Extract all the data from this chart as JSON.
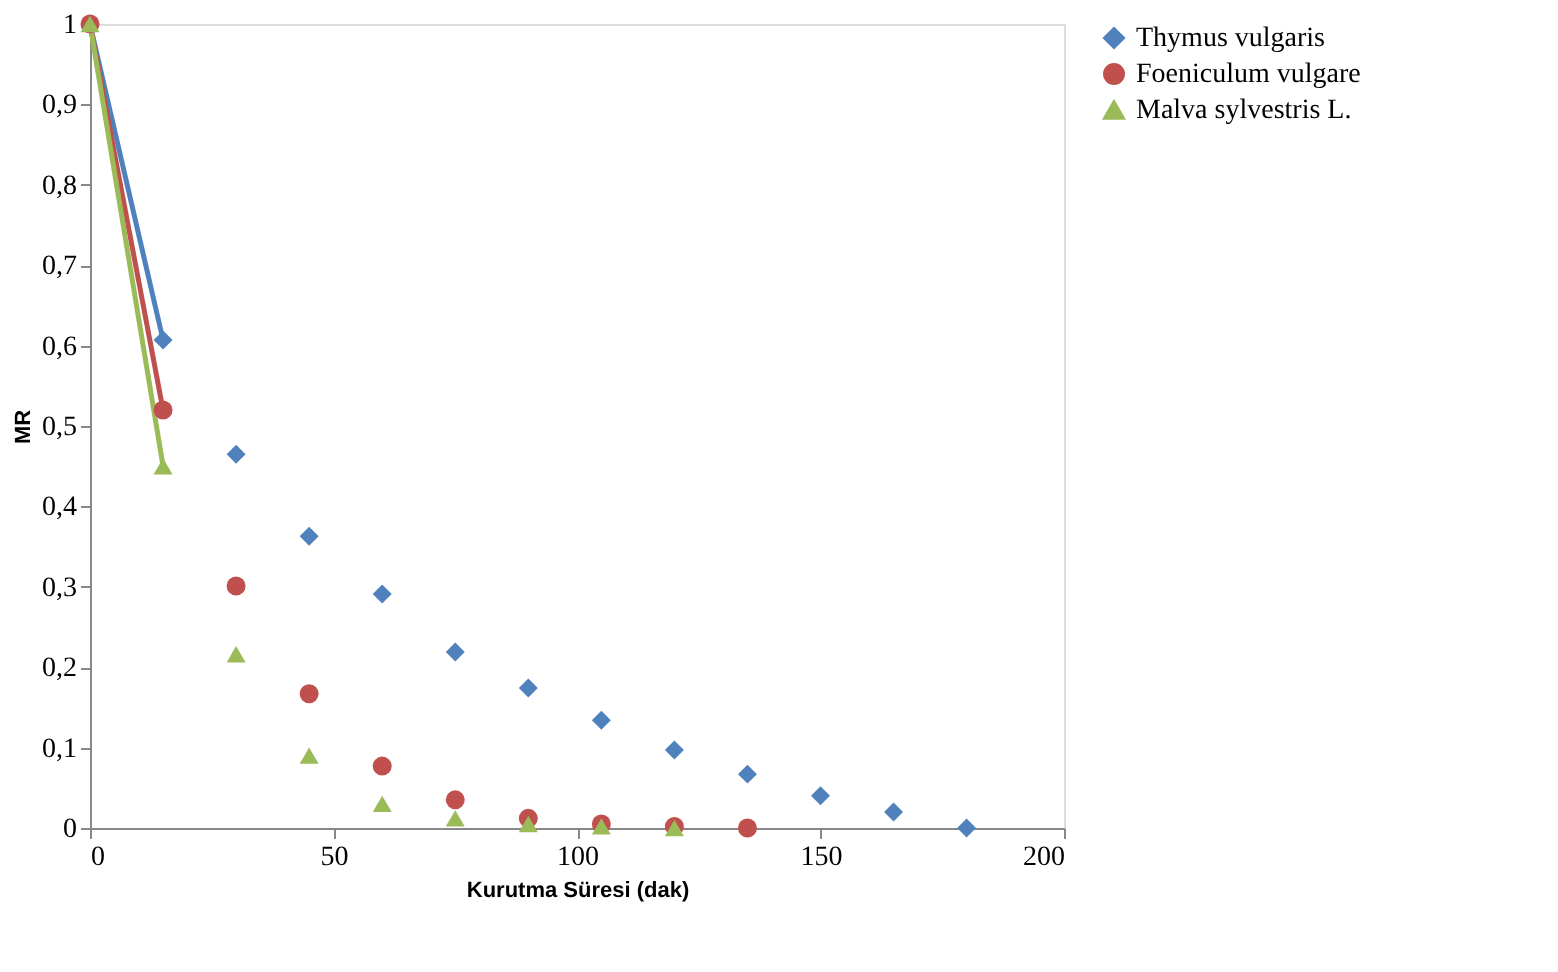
{
  "chart_data": {
    "type": "line",
    "xlabel": "Kurutma Süresi (dak)",
    "ylabel": "MR",
    "xlim": [
      0,
      200
    ],
    "xticks": [
      0,
      50,
      100,
      150,
      200
    ],
    "ylim": [
      0,
      1
    ],
    "yticks": [
      0,
      {
        "value": 0.1,
        "label": "0,1"
      },
      {
        "value": 0.2,
        "label": "0,2"
      },
      {
        "value": 0.3,
        "label": "0,3"
      },
      {
        "value": 0.4,
        "label": "0,4"
      },
      {
        "value": 0.5,
        "label": "0,5"
      },
      {
        "value": 0.6,
        "label": "0,6"
      },
      {
        "value": 0.7,
        "label": "0,7"
      },
      {
        "value": 0.8,
        "label": "0,8"
      },
      {
        "value": 0.9,
        "label": "0,9"
      },
      1
    ],
    "grid": false,
    "legend": "right",
    "line_style": "solid",
    "series": [
      {
        "name": "Thymus vulgaris",
        "marker": "diamond",
        "color": "#4f81bd",
        "x": [
          0,
          15
        ],
        "values": [
          1,
          0.607
        ]
      },
      {
        "name": "Foeniculum vulgare",
        "marker": "circle",
        "color": "#c0504d",
        "x": [
          0,
          15
        ],
        "values": [
          1,
          0.52
        ]
      },
      {
        "name": "Malva sylvestris L.",
        "marker": "triangle",
        "color": "#9bbb59",
        "x": [
          0,
          15
        ],
        "values": [
          1,
          0.45
        ]
      },
      {
        "type": "scatter",
        "marker": "diamond",
        "color": "#4f81bd",
        "x": [
          30,
          45,
          60,
          75,
          90,
          105,
          120,
          135,
          150,
          165,
          180
        ],
        "values": [
          0.465,
          0.363,
          0.291,
          0.219,
          0.174,
          0.134,
          0.097,
          0.067,
          0.04,
          0.02,
          0
        ]
      },
      {
        "type": "scatter",
        "marker": "circle",
        "color": "#c0504d",
        "x": [
          30,
          45,
          60,
          75,
          90,
          105,
          120,
          135
        ],
        "values": [
          0.301,
          0.167,
          0.077,
          0.035,
          0.012,
          0.005,
          0.002,
          0
        ]
      },
      {
        "type": "scatter",
        "marker": "triangle",
        "color": "#9bbb59",
        "x": [
          30,
          45,
          60,
          75,
          90,
          105,
          120
        ],
        "values": [
          0.216,
          0.09,
          0.03,
          0.012,
          0.005,
          0.002,
          0
        ]
      }
    ]
  }
}
